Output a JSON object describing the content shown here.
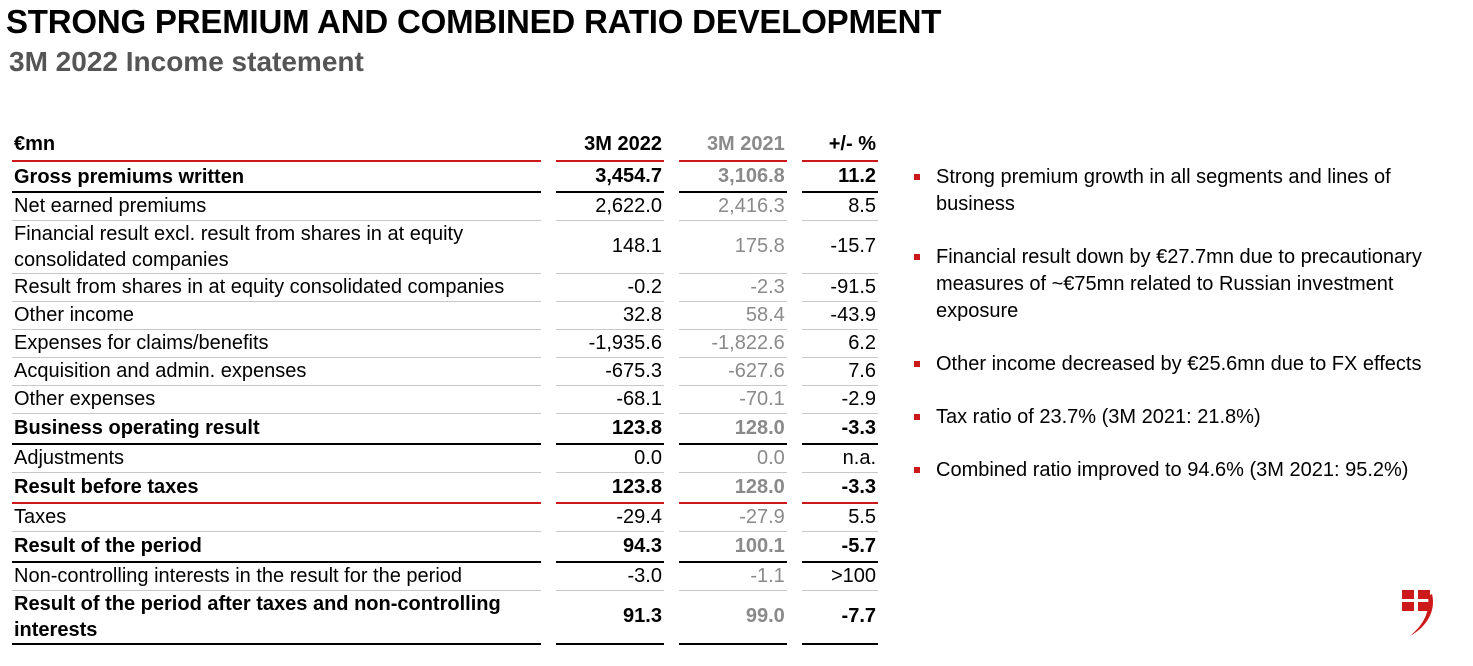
{
  "header": {
    "title": "STRONG PREMIUM AND COMBINED RATIO DEVELOPMENT",
    "subtitle": "3M 2022 Income statement"
  },
  "table": {
    "columns": [
      "€mn",
      "3M 2022",
      "3M 2021",
      "+/- %"
    ],
    "rows": [
      {
        "label": "Gross premiums written",
        "v2022": "3,454.7",
        "v2021": "3,106.8",
        "change": "11.2",
        "style": "bold"
      },
      {
        "label": "Net earned premiums",
        "v2022": "2,622.0",
        "v2021": "2,416.3",
        "change": "8.5",
        "style": "normal"
      },
      {
        "label": "Financial result excl. result from shares in at equity consolidated companies",
        "v2022": "148.1",
        "v2021": "175.8",
        "change": "-15.7",
        "style": "normal"
      },
      {
        "label": "Result from shares in at equity consolidated companies",
        "v2022": "-0.2",
        "v2021": "-2.3",
        "change": "-91.5",
        "style": "normal"
      },
      {
        "label": "Other income",
        "v2022": "32.8",
        "v2021": "58.4",
        "change": "-43.9",
        "style": "normal"
      },
      {
        "label": "Expenses for claims/benefits",
        "v2022": "-1,935.6",
        "v2021": "-1,822.6",
        "change": "6.2",
        "style": "normal"
      },
      {
        "label": "Acquisition and admin. expenses",
        "v2022": "-675.3",
        "v2021": "-627.6",
        "change": "7.6",
        "style": "normal"
      },
      {
        "label": "Other expenses",
        "v2022": "-68.1",
        "v2021": "-70.1",
        "change": "-2.9",
        "style": "normal"
      },
      {
        "label": "Business operating result",
        "v2022": "123.8",
        "v2021": "128.0",
        "change": "-3.3",
        "style": "bold"
      },
      {
        "label": "Adjustments",
        "v2022": "0.0",
        "v2021": "0.0",
        "change": "n.a.",
        "style": "normal"
      },
      {
        "label": "Result before taxes",
        "v2022": "123.8",
        "v2021": "128.0",
        "change": "-3.3",
        "style": "bold-red"
      },
      {
        "label": "Taxes",
        "v2022": "-29.4",
        "v2021": "-27.9",
        "change": "5.5",
        "style": "normal"
      },
      {
        "label": "Result of the period",
        "v2022": "94.3",
        "v2021": "100.1",
        "change": "-5.7",
        "style": "bold"
      },
      {
        "label": "Non-controlling interests in the result for the period",
        "v2022": "-3.0",
        "v2021": "-1.1",
        "change": ">100",
        "style": "normal"
      },
      {
        "label": "Result of the period after taxes and non-controlling interests",
        "v2022": "91.3",
        "v2021": "99.0",
        "change": "-7.7",
        "style": "bold-last"
      }
    ]
  },
  "bullets": [
    "Strong premium growth in all segments and lines of business",
    "Financial result down by €27.7mn due to precautionary measures of ~€75mn related to Russian investment exposure",
    "Other income decreased by €25.6mn due to FX effects",
    "Tax ratio of 23.7% (3M 2021: 21.8%)",
    "Combined ratio improved to 94.6% (3M 2021: 95.2%)"
  ],
  "colors": {
    "accent": "#cc1a1a",
    "muted": "#8a8a8a"
  },
  "logo": {
    "icon": "company-logo-icon"
  }
}
